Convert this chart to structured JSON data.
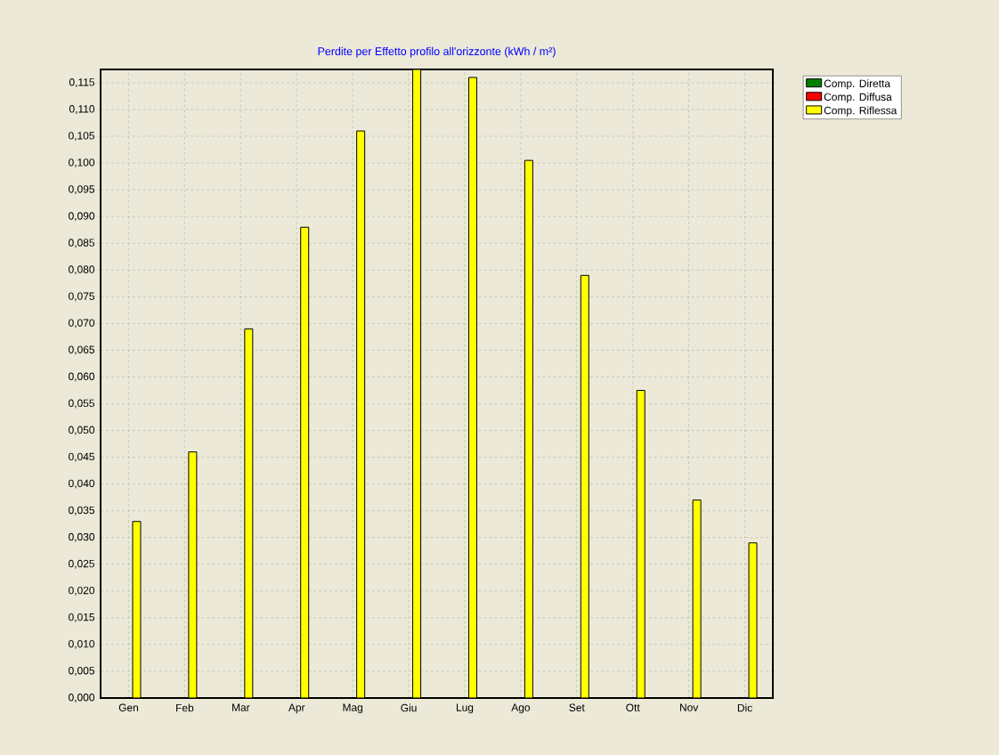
{
  "chart_data": {
    "type": "bar",
    "title": "Perdite per Effetto profilo all'orizzonte (kWh / m²)",
    "categories": [
      "Gen",
      "Feb",
      "Mar",
      "Apr",
      "Mag",
      "Giu",
      "Lug",
      "Ago",
      "Set",
      "Ott",
      "Nov",
      "Dic"
    ],
    "series": [
      {
        "name": "Comp. Diretta",
        "color": "#008000",
        "values": [
          0,
          0,
          0,
          0,
          0,
          0,
          0,
          0,
          0,
          0,
          0,
          0
        ]
      },
      {
        "name": "Comp. Diffusa",
        "color": "#ff0000",
        "values": [
          0,
          0,
          0,
          0,
          0,
          0,
          0,
          0,
          0,
          0,
          0,
          0
        ]
      },
      {
        "name": "Comp. Riflessa",
        "color": "#ffff00",
        "values": [
          0.033,
          0.046,
          0.069,
          0.088,
          0.106,
          0.1175,
          0.116,
          0.1005,
          0.079,
          0.0575,
          0.037,
          0.029
        ]
      }
    ],
    "ylim": [
      0,
      0.1175
    ],
    "yticks": [
      {
        "value": 0,
        "label": "0,000"
      },
      {
        "value": 0.005,
        "label": "0,005"
      },
      {
        "value": 0.01,
        "label": "0,010"
      },
      {
        "value": 0.015,
        "label": "0,015"
      },
      {
        "value": 0.02,
        "label": "0,020"
      },
      {
        "value": 0.025,
        "label": "0,025"
      },
      {
        "value": 0.03,
        "label": "0,030"
      },
      {
        "value": 0.035,
        "label": "0,035"
      },
      {
        "value": 0.04,
        "label": "0,040"
      },
      {
        "value": 0.045,
        "label": "0,045"
      },
      {
        "value": 0.05,
        "label": "0,050"
      },
      {
        "value": 0.055,
        "label": "0,055"
      },
      {
        "value": 0.06,
        "label": "0,060"
      },
      {
        "value": 0.065,
        "label": "0,065"
      },
      {
        "value": 0.07,
        "label": "0,070"
      },
      {
        "value": 0.075,
        "label": "0,075"
      },
      {
        "value": 0.08,
        "label": "0,080"
      },
      {
        "value": 0.085,
        "label": "0,085"
      },
      {
        "value": 0.09,
        "label": "0,090"
      },
      {
        "value": 0.095,
        "label": "0,095"
      },
      {
        "value": 0.1,
        "label": "0,100"
      },
      {
        "value": 0.105,
        "label": "0,105"
      },
      {
        "value": 0.11,
        "label": "0,110"
      },
      {
        "value": 0.115,
        "label": "0,115"
      }
    ],
    "grid": true,
    "legend": "top right"
  }
}
